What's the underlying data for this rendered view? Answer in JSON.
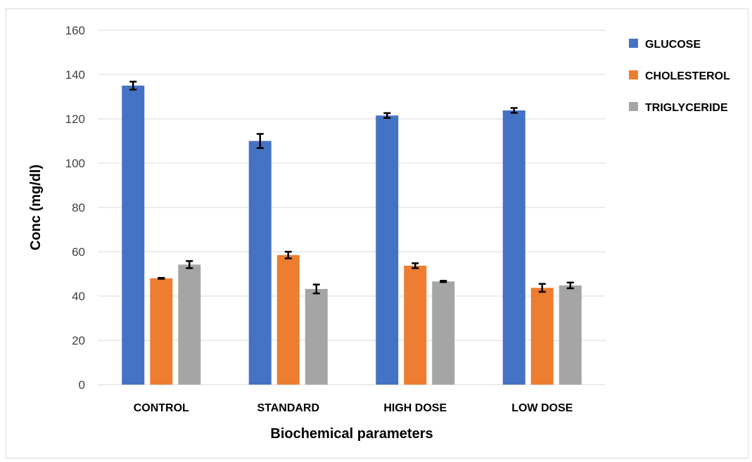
{
  "chart_data": {
    "type": "bar",
    "title": "",
    "xlabel": "Biochemical parameters",
    "ylabel": "Conc (mg/dl)",
    "ylim": [
      0,
      160
    ],
    "yticks": [
      0,
      20,
      40,
      60,
      80,
      100,
      120,
      140,
      160
    ],
    "grid": true,
    "legend_position": "right",
    "categories": [
      "CONTROL",
      "STANDARD",
      "HIGH DOSE",
      "LOW DOSE"
    ],
    "series": [
      {
        "name": "GLUCOSE",
        "color": "#4472c4",
        "values": [
          135,
          110,
          121.5,
          123.8
        ],
        "errors": [
          1.8,
          3.2,
          1.1,
          1.1
        ]
      },
      {
        "name": "CHOLESTEROL",
        "color": "#ed7d31",
        "values": [
          48,
          58.5,
          53.7,
          43.7
        ],
        "errors": [
          0.2,
          1.5,
          1.1,
          1.8
        ]
      },
      {
        "name": "TRIGLYCERIDE",
        "color": "#a5a5a5",
        "values": [
          54.2,
          43.2,
          46.6,
          44.8
        ],
        "errors": [
          1.6,
          2.0,
          0.3,
          1.3
        ]
      }
    ]
  }
}
